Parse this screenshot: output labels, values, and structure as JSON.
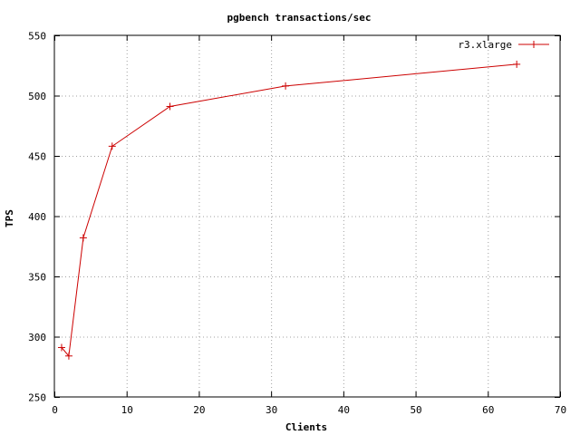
{
  "chart_data": {
    "type": "line",
    "title": "pgbench transactions/sec",
    "xlabel": "Clients",
    "ylabel": "TPS",
    "xlim": [
      0,
      70
    ],
    "ylim": [
      250,
      550
    ],
    "xticks": [
      0,
      10,
      20,
      30,
      40,
      50,
      60,
      70
    ],
    "yticks": [
      250,
      300,
      350,
      400,
      450,
      500,
      550
    ],
    "grid": true,
    "legend_position": "top-right",
    "series": [
      {
        "name": "r3.xlarge",
        "color": "#cc0000",
        "marker": "plus",
        "x": [
          1,
          2,
          4,
          8,
          16,
          32,
          64
        ],
        "y": [
          291,
          284,
          382,
          458,
          491,
          508,
          526
        ]
      }
    ]
  }
}
